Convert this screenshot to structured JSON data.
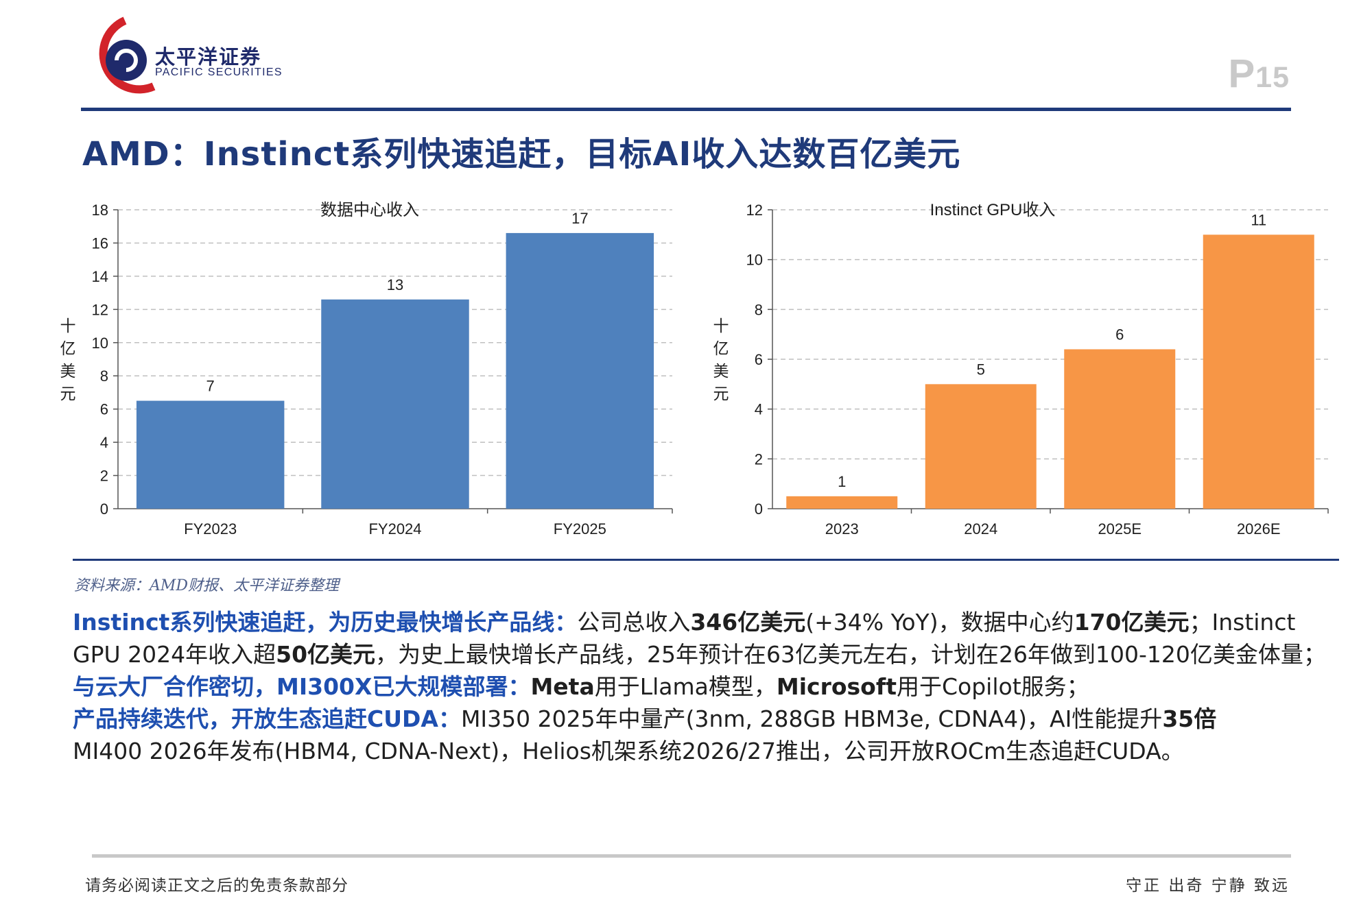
{
  "header": {
    "logo_cn": "太平洋证券",
    "logo_en": "PACIFIC SECURITIES",
    "page_prefix": "P",
    "page_number": "15",
    "title": "AMD：Instinct系列快速追赶，目标AI收入达数百亿美元"
  },
  "colors": {
    "brand_navy": "#1f3a7a",
    "logo_red": "#d2232a",
    "bar_blue": "#4f81bd",
    "bar_orange": "#f79646",
    "highlight_blue": "#1e4fb0"
  },
  "chart_data": [
    {
      "type": "bar",
      "title": "数据中心收入",
      "ylabel": "十亿美元",
      "xlabel": "",
      "categories": [
        "FY2023",
        "FY2024",
        "FY2025"
      ],
      "values": [
        6.5,
        12.6,
        16.6
      ],
      "data_labels": [
        "7",
        "13",
        "17"
      ],
      "ylim": [
        0,
        18
      ],
      "yticks": [
        0,
        2,
        4,
        6,
        8,
        10,
        12,
        14,
        16,
        18
      ],
      "grid": true,
      "color": "#4f81bd"
    },
    {
      "type": "bar",
      "title": "Instinct GPU收入",
      "ylabel": "十亿美元",
      "xlabel": "",
      "categories": [
        "2023",
        "2024",
        "2025E",
        "2026E"
      ],
      "values": [
        0.5,
        5.0,
        6.4,
        11.0
      ],
      "data_labels": [
        "1",
        "5",
        "6",
        "11"
      ],
      "ylim": [
        0,
        12
      ],
      "yticks": [
        0,
        2,
        4,
        6,
        8,
        10,
        12
      ],
      "grid": true,
      "color": "#f79646"
    }
  ],
  "source": "资料来源：AMD财报、太平洋证券整理",
  "body": {
    "p1": {
      "hl": "Instinct系列快速追赶，为历史最快增长产品线：",
      "t1": "公司总收入",
      "b1": "346亿美元",
      "t2": "(+34% YoY)，数据中心约",
      "b2": "170亿美元",
      "t3": "；Instinct GPU 2024年收入超",
      "b3": "50亿美元",
      "t4": "，为史上最快增长产品线，25年预计在63亿美元左右，计划在26年做到100-120亿美金体量；"
    },
    "p2": {
      "hl": "与云大厂合作密切，MI300X已大规模部署：",
      "b1": "Meta",
      "t1": "用于Llama模型，",
      "b2": "Microsoft",
      "t2": "用于Copilot服务；"
    },
    "p3": {
      "hl": "产品持续迭代，开放生态追赶CUDA：",
      "t1": "MI350 2025年中量产(3nm, 288GB HBM3e, CDNA4)，AI性能提升",
      "b1": "35倍",
      "t2": "MI400 2026年发布(HBM4, CDNA-Next)，Helios机架系统2026/27推出，公司开放ROCm生态追赶CUDA。"
    }
  },
  "footer": {
    "left": "请务必阅读正文之后的免责条款部分",
    "right": "守正 出奇 宁静 致远"
  }
}
